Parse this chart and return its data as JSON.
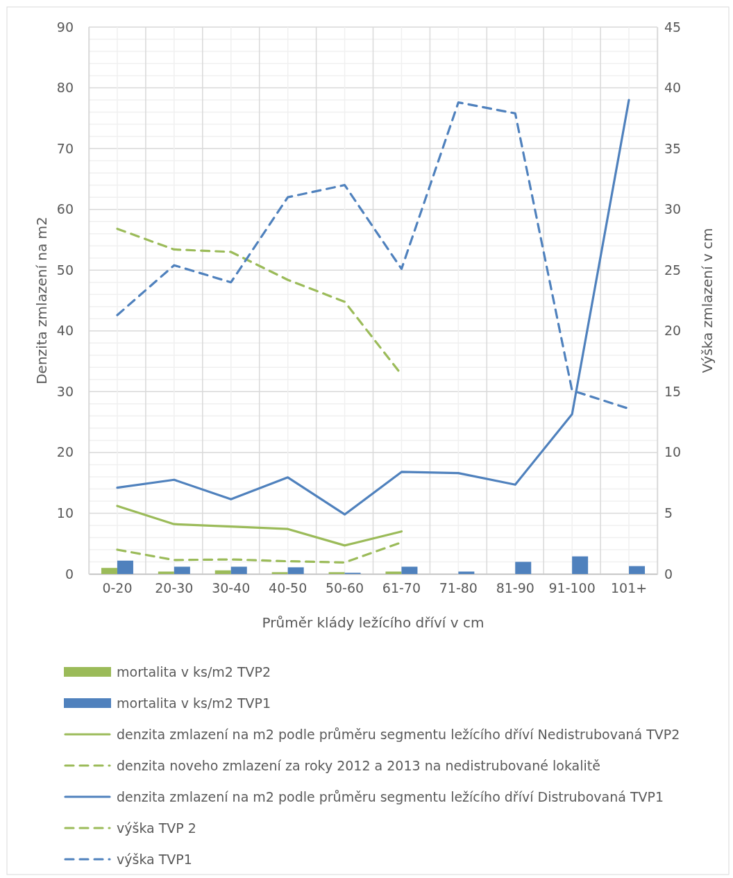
{
  "chart_data": {
    "type": "line",
    "xlabel": "Průměr klády ležícího dříví v cm",
    "ylabel": "Denzita zmlazení na m2",
    "y2label": "Výška zmlazení v cm",
    "categories": [
      "0-20",
      "20-30",
      "30-40",
      "40-50",
      "50-60",
      "61-70",
      "71-80",
      "81-90",
      "91-100",
      "101+"
    ],
    "ylim": [
      0,
      90
    ],
    "yticks": [
      0,
      10,
      20,
      30,
      40,
      50,
      60,
      70,
      80,
      90
    ],
    "y2lim": [
      0,
      45
    ],
    "y2ticks": [
      0,
      5,
      10,
      15,
      20,
      25,
      30,
      35,
      40,
      45
    ],
    "grid": true,
    "legend": "bottom",
    "series": [
      {
        "name": "mortalita v ks/m2 TVP2",
        "type": "bar",
        "color": "#9bbb59",
        "values": [
          1.0,
          0.4,
          0.6,
          0.3,
          0.3,
          0.4,
          null,
          null,
          null,
          null
        ]
      },
      {
        "name": "mortalita v ks/m2 TVP1",
        "type": "bar",
        "color": "#4f81bd",
        "values": [
          2.2,
          1.2,
          1.2,
          1.1,
          0.2,
          1.2,
          0.4,
          2.0,
          2.9,
          1.3
        ]
      },
      {
        "name": "denzita zmlazení na m2 podle průměru segmentu ležícího dříví Nedistrubovaná TVP2",
        "line_style": "solid",
        "color": "#9bbb59",
        "values": [
          11.2,
          8.2,
          7.8,
          7.4,
          4.7,
          7.0,
          null,
          null,
          null,
          null
        ]
      },
      {
        "name": "denzita noveho zmlazení za roky 2012 a 2013 na nedistrubované lokalitě",
        "line_style": "dashed",
        "color": "#9bbb59",
        "values": [
          4.0,
          2.3,
          2.4,
          2.1,
          1.9,
          5.2,
          null,
          null,
          null,
          null
        ]
      },
      {
        "name": "denzita zmlazení na m2 podle průměru segmentu ležícího dříví Distrubovaná TVP1",
        "line_style": "solid",
        "color": "#4f81bd",
        "values": [
          14.2,
          15.5,
          12.3,
          15.9,
          9.8,
          16.8,
          16.6,
          14.7,
          26.3,
          78.0
        ]
      },
      {
        "name": "výška TVP 2",
        "line_style": "dashed",
        "axis": "y2",
        "color": "#9bbb59",
        "values": [
          28.4,
          26.7,
          26.5,
          24.2,
          22.4,
          16.4,
          null,
          null,
          null,
          null
        ]
      },
      {
        "name": "výška TVP1",
        "line_style": "dashed",
        "axis": "y2",
        "color": "#4f81bd",
        "values": [
          21.3,
          25.4,
          24.0,
          31.0,
          32.0,
          25.1,
          38.8,
          37.9,
          15.1,
          13.6
        ]
      }
    ]
  }
}
